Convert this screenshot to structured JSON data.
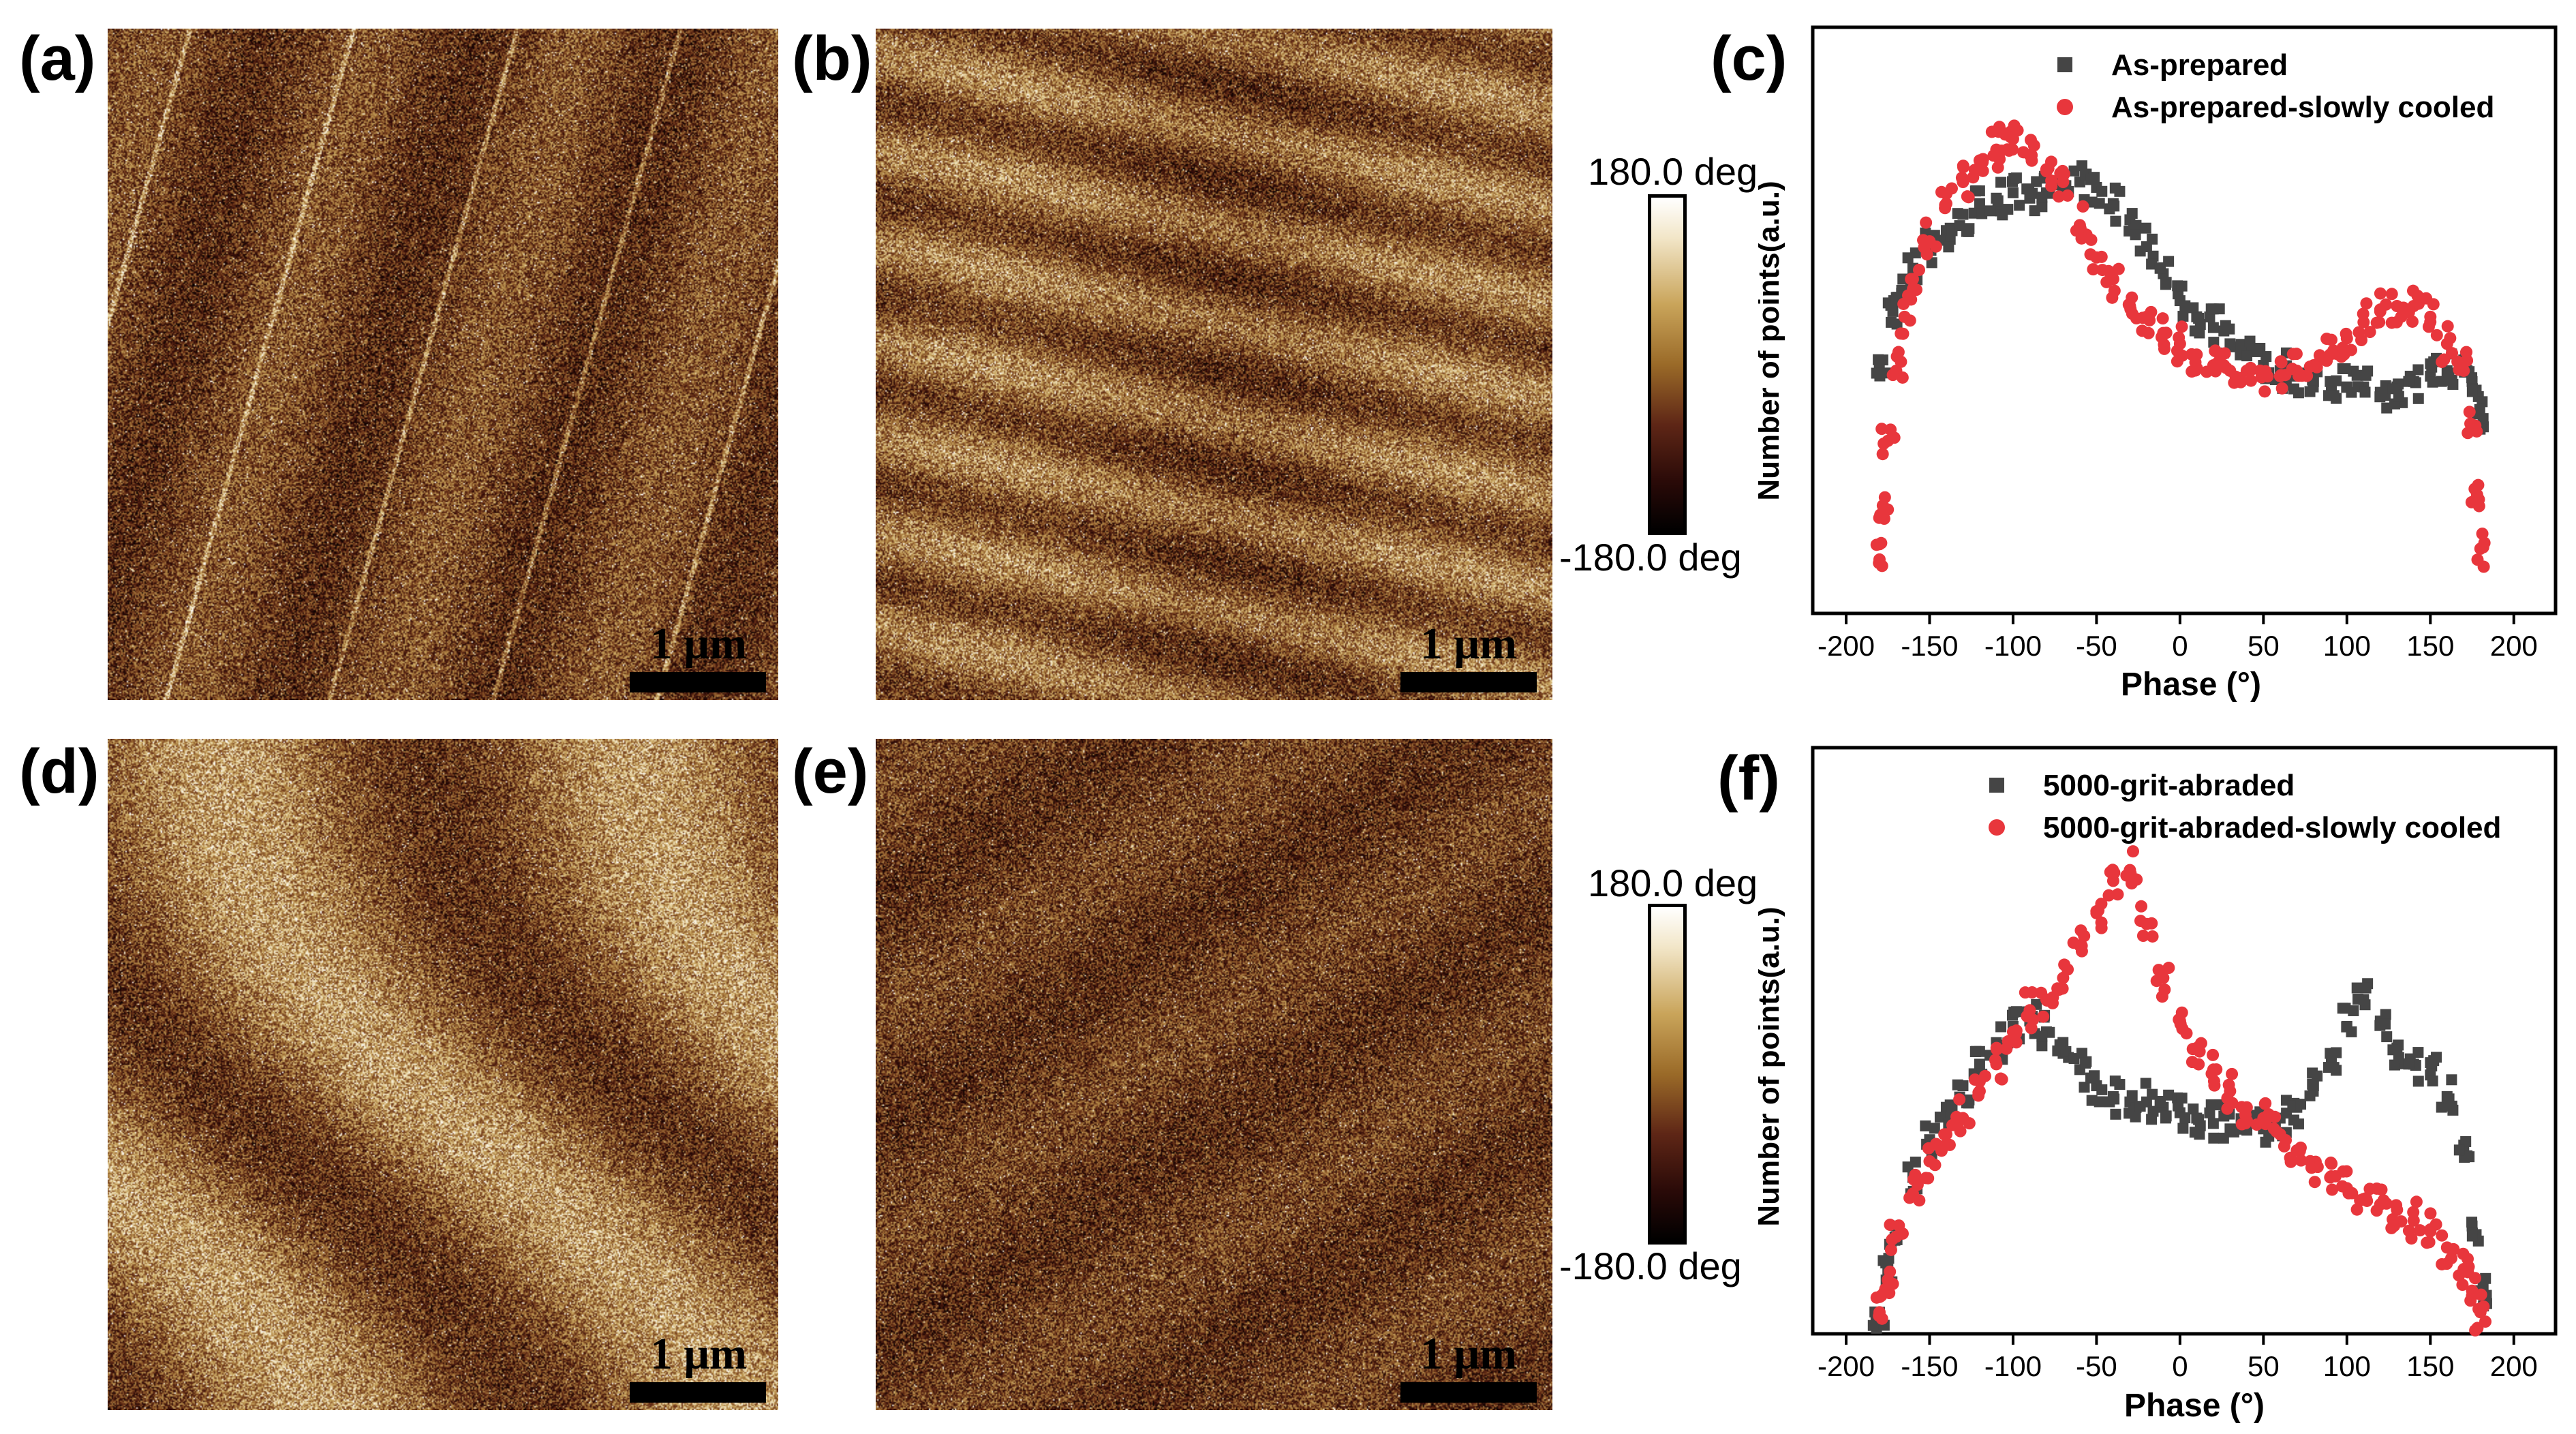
{
  "panels": {
    "a": {
      "label": "(a)",
      "scalebar": "1 μm"
    },
    "b": {
      "label": "(b)",
      "scalebar": "1 μm"
    },
    "c": {
      "label": "(c)"
    },
    "d": {
      "label": "(d)",
      "scalebar": "1 μm"
    },
    "e": {
      "label": "(e)",
      "scalebar": "1 μm"
    },
    "f": {
      "label": "(f)"
    }
  },
  "colorbars": [
    {
      "top_label": "180.0 deg",
      "bottom_label": "-180.0 deg"
    },
    {
      "top_label": "180.0 deg",
      "bottom_label": "-180.0 deg"
    }
  ],
  "colors": {
    "series_gray": "#454545",
    "series_red": "#e8363c"
  },
  "chart_data": [
    {
      "panel": "c",
      "type": "scatter",
      "title": "",
      "xlabel": "Phase (°)",
      "ylabel": "Number of points(a.u.)",
      "xlim": [
        -220,
        225
      ],
      "ylim": [
        0,
        1
      ],
      "xticks": [
        -200,
        -150,
        -100,
        -50,
        0,
        50,
        100,
        150,
        200
      ],
      "yticks": [],
      "legend": "top-right",
      "series": [
        {
          "name": "As-prepared",
          "marker": "square",
          "color": "#454545",
          "x": [
            -178,
            -172,
            -166,
            -160,
            -150,
            -140,
            -130,
            -120,
            -110,
            -100,
            -90,
            -80,
            -70,
            -60,
            -50,
            -40,
            -30,
            -20,
            -10,
            0,
            10,
            20,
            30,
            40,
            50,
            60,
            70,
            80,
            90,
            100,
            110,
            120,
            130,
            140,
            150,
            160,
            170,
            175,
            178
          ],
          "y": [
            0.47,
            0.56,
            0.62,
            0.64,
            0.68,
            0.71,
            0.74,
            0.76,
            0.77,
            0.78,
            0.77,
            0.78,
            0.79,
            0.8,
            0.79,
            0.76,
            0.73,
            0.68,
            0.63,
            0.58,
            0.55,
            0.53,
            0.5,
            0.48,
            0.46,
            0.45,
            0.44,
            0.43,
            0.43,
            0.42,
            0.42,
            0.41,
            0.42,
            0.43,
            0.44,
            0.45,
            0.47,
            0.43,
            0.37
          ]
        },
        {
          "name": "As-prepared-slowly cooled",
          "marker": "circle",
          "color": "#e8363c",
          "x": [
            -180,
            -178,
            -175,
            -170,
            -165,
            -160,
            -150,
            -140,
            -130,
            -120,
            -110,
            -105,
            -100,
            -90,
            -80,
            -70,
            -60,
            -50,
            -40,
            -30,
            -20,
            -10,
            0,
            10,
            20,
            30,
            40,
            50,
            60,
            70,
            80,
            90,
            100,
            110,
            120,
            130,
            140,
            150,
            160,
            170,
            175,
            178,
            180
          ],
          "y": [
            0.1,
            0.2,
            0.32,
            0.45,
            0.55,
            0.62,
            0.69,
            0.76,
            0.8,
            0.84,
            0.86,
            0.89,
            0.88,
            0.85,
            0.82,
            0.8,
            0.72,
            0.66,
            0.62,
            0.57,
            0.55,
            0.52,
            0.5,
            0.48,
            0.46,
            0.45,
            0.45,
            0.44,
            0.44,
            0.45,
            0.46,
            0.48,
            0.51,
            0.54,
            0.56,
            0.57,
            0.57,
            0.55,
            0.5,
            0.45,
            0.35,
            0.22,
            0.12
          ]
        }
      ]
    },
    {
      "panel": "f",
      "type": "scatter",
      "title": "",
      "xlabel": "Phase (°)",
      "ylabel": "Number of points(a.u.)",
      "xlim": [
        -220,
        225
      ],
      "ylim": [
        0,
        1
      ],
      "xticks": [
        -200,
        -150,
        -100,
        -50,
        0,
        50,
        100,
        150,
        200
      ],
      "yticks": [],
      "legend": "top-center",
      "series": [
        {
          "name": "5000-grit-abraded",
          "marker": "square",
          "color": "#454545",
          "x": [
            -180,
            -175,
            -170,
            -160,
            -150,
            -140,
            -130,
            -120,
            -110,
            -100,
            -90,
            -80,
            -70,
            -60,
            -50,
            -40,
            -30,
            -20,
            -10,
            0,
            10,
            20,
            30,
            40,
            50,
            60,
            70,
            80,
            90,
            100,
            110,
            120,
            130,
            140,
            150,
            160,
            170,
            175,
            180
          ],
          "y": [
            0.04,
            0.12,
            0.2,
            0.29,
            0.36,
            0.42,
            0.46,
            0.5,
            0.54,
            0.57,
            0.58,
            0.56,
            0.52,
            0.49,
            0.46,
            0.44,
            0.43,
            0.43,
            0.42,
            0.41,
            0.4,
            0.39,
            0.38,
            0.38,
            0.38,
            0.4,
            0.42,
            0.46,
            0.52,
            0.57,
            0.62,
            0.58,
            0.53,
            0.5,
            0.48,
            0.44,
            0.35,
            0.2,
            0.08
          ]
        },
        {
          "name": "5000-grit-abraded-slowly cooled",
          "marker": "circle",
          "color": "#e8363c",
          "x": [
            -180,
            -175,
            -170,
            -160,
            -150,
            -140,
            -130,
            -120,
            -110,
            -100,
            -90,
            -80,
            -70,
            -60,
            -50,
            -40,
            -30,
            -20,
            -10,
            0,
            10,
            20,
            30,
            40,
            50,
            60,
            70,
            80,
            90,
            100,
            110,
            120,
            130,
            140,
            150,
            160,
            170,
            175,
            180
          ],
          "y": [
            0.04,
            0.1,
            0.18,
            0.26,
            0.32,
            0.37,
            0.4,
            0.45,
            0.5,
            0.56,
            0.6,
            0.62,
            0.66,
            0.72,
            0.78,
            0.84,
            0.86,
            0.76,
            0.66,
            0.58,
            0.53,
            0.49,
            0.45,
            0.42,
            0.4,
            0.37,
            0.34,
            0.31,
            0.29,
            0.27,
            0.25,
            0.24,
            0.23,
            0.21,
            0.19,
            0.16,
            0.12,
            0.08,
            0.04
          ]
        }
      ]
    }
  ]
}
